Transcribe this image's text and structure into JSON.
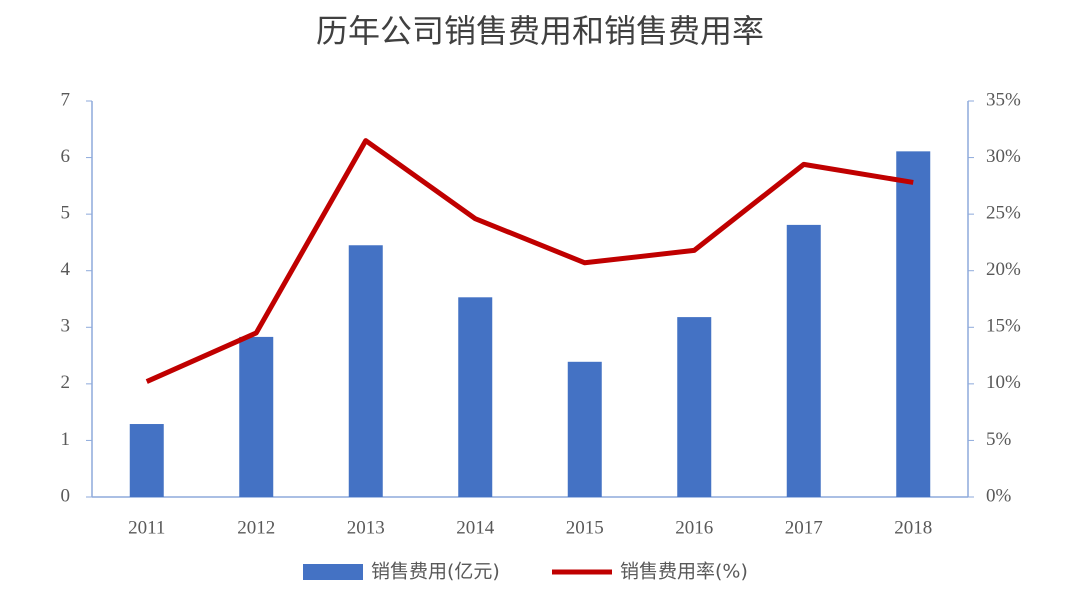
{
  "chart_data": {
    "type": "bar",
    "title": "历年公司销售费用和销售费用率",
    "categories": [
      "2011",
      "2012",
      "2013",
      "2014",
      "2015",
      "2016",
      "2017",
      "2018"
    ],
    "series": [
      {
        "name": "销售费用(亿元)",
        "type": "bar",
        "color": "#4472c4",
        "values": [
          1.29,
          2.83,
          4.45,
          3.53,
          2.39,
          3.18,
          4.81,
          6.11
        ]
      },
      {
        "name": "销售费用率(%)",
        "type": "line",
        "axis": "y2",
        "color": "#c00000",
        "values": [
          10.2,
          14.5,
          31.5,
          24.6,
          20.7,
          21.8,
          29.4,
          27.8
        ]
      }
    ],
    "ylim": [
      0,
      7
    ],
    "yticks": [
      0,
      1,
      2,
      3,
      4,
      5,
      6,
      7
    ],
    "y2lim": [
      0,
      35
    ],
    "y2ticks": [
      {
        "value": 0,
        "label": "0%"
      },
      {
        "value": 5,
        "label": "5%"
      },
      {
        "value": 10,
        "label": "10%"
      },
      {
        "value": 15,
        "label": "15%"
      },
      {
        "value": 20,
        "label": "20%"
      },
      {
        "value": 25,
        "label": "25%"
      },
      {
        "value": 30,
        "label": "30%"
      },
      {
        "value": 35,
        "label": "35%"
      }
    ],
    "grid": false,
    "legend": "bottom"
  }
}
